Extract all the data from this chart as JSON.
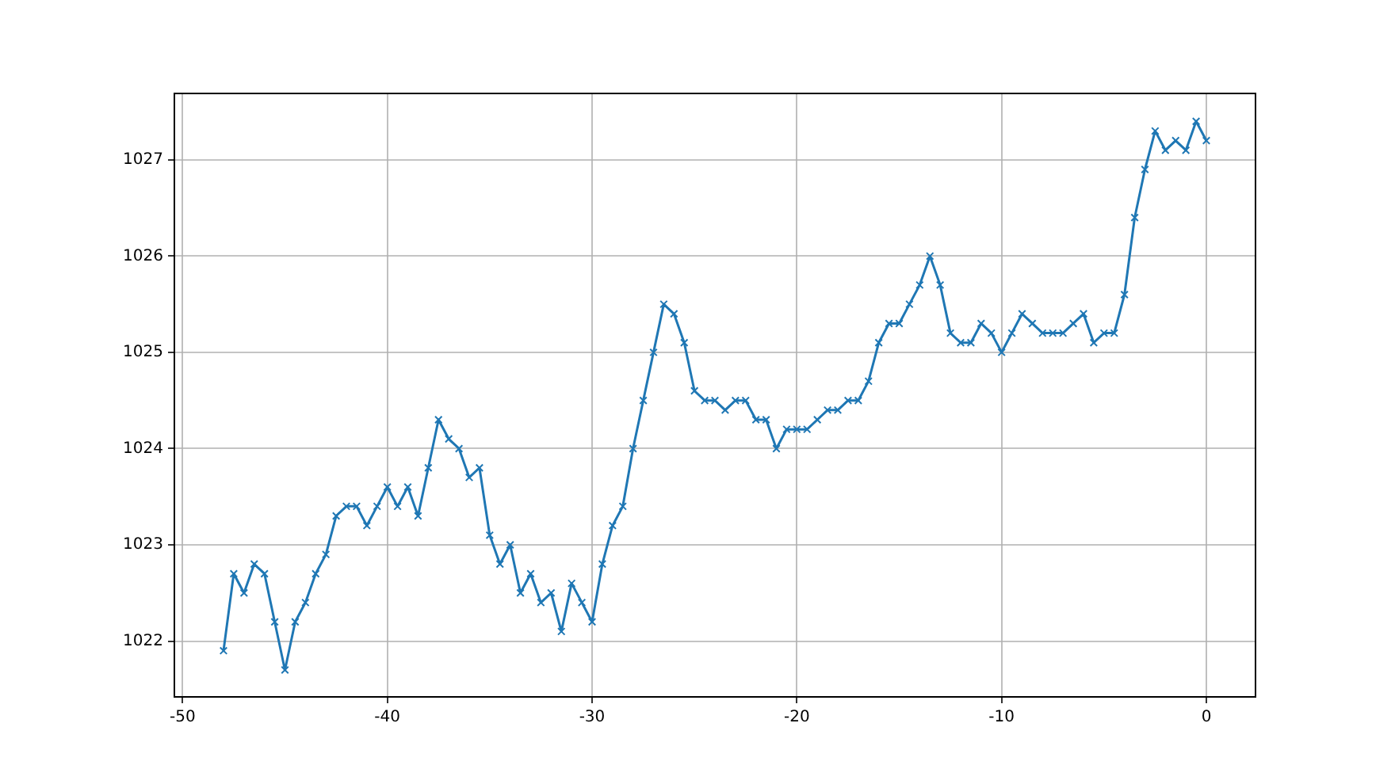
{
  "chart_data": {
    "type": "line",
    "x": [
      -48,
      -47.5,
      -47,
      -46.5,
      -46,
      -45.5,
      -45,
      -44.5,
      -44,
      -43.5,
      -43,
      -42.5,
      -42,
      -41.5,
      -41,
      -40.5,
      -40,
      -39.5,
      -39,
      -38.5,
      -38,
      -37.5,
      -37,
      -36.5,
      -36,
      -35.5,
      -35,
      -34.5,
      -34,
      -33.5,
      -33,
      -32.5,
      -32,
      -31.5,
      -31,
      -30.5,
      -30,
      -29.5,
      -29,
      -28.5,
      -28,
      -27.5,
      -27,
      -26.5,
      -26,
      -25.5,
      -25,
      -24.5,
      -24,
      -23.5,
      -23,
      -22.5,
      -22,
      -21.5,
      -21,
      -20.5,
      -20,
      -19.5,
      -19,
      -18.5,
      -18,
      -17.5,
      -17,
      -16.5,
      -16,
      -15.5,
      -15,
      -14.5,
      -14,
      -13.5,
      -13,
      -12.5,
      -12,
      -11.5,
      -11,
      -10.5,
      -10,
      -9.5,
      -9,
      -8.5,
      -8,
      -7.5,
      -7,
      -6.5,
      -6,
      -5.5,
      -5,
      -4.5,
      -4,
      -3.5,
      -3,
      -2.5,
      -2,
      -1.5,
      -1,
      -0.5,
      0
    ],
    "series": [
      {
        "color": "#1f77b4",
        "values": [
          1021.9,
          1022.7,
          1022.5,
          1022.8,
          1022.7,
          1022.2,
          1021.7,
          1022.2,
          1022.4,
          1022.7,
          1022.9,
          1023.3,
          1023.4,
          1023.4,
          1023.2,
          1023.4,
          1023.6,
          1023.4,
          1023.6,
          1023.3,
          1023.8,
          1024.3,
          1024.1,
          1024.0,
          1023.7,
          1023.8,
          1023.1,
          1022.8,
          1023.0,
          1022.5,
          1022.7,
          1022.4,
          1022.5,
          1022.1,
          1022.6,
          1022.4,
          1022.2,
          1022.8,
          1023.2,
          1023.4,
          1024.0,
          1024.5,
          1025.0,
          1025.5,
          1025.4,
          1025.1,
          1024.6,
          1024.5,
          1024.5,
          1024.4,
          1024.5,
          1024.5,
          1024.3,
          1024.3,
          1024.0,
          1024.2,
          1024.2,
          1024.2,
          1024.3,
          1024.4,
          1024.4,
          1024.5,
          1024.5,
          1024.7,
          1025.1,
          1025.3,
          1025.3,
          1025.5,
          1025.7,
          1026.0,
          1025.7,
          1025.2,
          1025.1,
          1025.1,
          1025.3,
          1025.2,
          1025.0,
          1025.2,
          1025.4,
          1025.3,
          1025.2,
          1025.2,
          1025.2,
          1025.3,
          1025.4,
          1025.1,
          1025.2,
          1025.2,
          1025.6,
          1026.4,
          1026.9,
          1027.3,
          1027.1,
          1027.2,
          1027.1,
          1027.4,
          1027.2
        ]
      }
    ],
    "xlim": [
      -50.4,
      2.4
    ],
    "xticks": [
      -50,
      -40,
      -30,
      -20,
      -10,
      0
    ],
    "ylim": [
      1021.42,
      1027.69
    ],
    "yticks": [
      1022,
      1023,
      1024,
      1025,
      1026,
      1027
    ],
    "grid": true,
    "legend": false,
    "marker": "cross",
    "line_style": "solid"
  }
}
